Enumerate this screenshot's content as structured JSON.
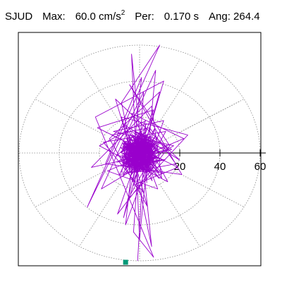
{
  "header": {
    "station": "SJUD",
    "max_label": "Max:",
    "max_value": "60.0 cm/s",
    "max_exponent": "2",
    "per_label": "Per:",
    "per_value": "0.170 s",
    "ang_label": "Ang:",
    "ang_value": "264.4"
  },
  "chart_data": {
    "type": "line",
    "projection": "polar-hodogram",
    "radial_axis": {
      "ticks": [
        20,
        40,
        60
      ],
      "tick_labels": [
        "20",
        "40",
        "60"
      ],
      "range": [
        0,
        60
      ],
      "units": "cm/s2"
    },
    "grid": true,
    "grid_circles": [
      20,
      40,
      60
    ],
    "spokes_deg": [
      0,
      30,
      60,
      90,
      120,
      150,
      180,
      210,
      240,
      270,
      300,
      330
    ],
    "max_value": 60.0,
    "direction_angle_deg": 264.4,
    "direction_line_angle_deg": 30,
    "trace_color": "#9900cc",
    "marker_color": "#009977",
    "series": [
      {
        "x": [
          0,
          8,
          -6,
          12,
          -14,
          5,
          18,
          -10,
          3,
          -20,
          14,
          -4,
          22,
          -16,
          9,
          -2,
          16,
          -24,
          6,
          11,
          -8,
          20,
          -12,
          2,
          -18,
          13,
          -6,
          24,
          -9,
          4,
          -15,
          10,
          -3,
          19,
          -21,
          7,
          -11,
          15,
          -5,
          21,
          -17,
          1,
          -7,
          12,
          -13,
          17,
          -19,
          8,
          0,
          -4,
          6,
          -9,
          10,
          -26,
          2,
          -3,
          7,
          -22,
          12,
          -8,
          3,
          -1
        ],
        "y": [
          0,
          6,
          -8,
          -4,
          10,
          14,
          -6,
          -12,
          18,
          4,
          -16,
          22,
          8,
          -10,
          -20,
          12,
          2,
          -8,
          26,
          -14,
          16,
          -4,
          30,
          -22,
          6,
          12,
          -26,
          10,
          20,
          -30,
          8,
          34,
          -18,
          -8,
          14,
          24,
          -34,
          4,
          38,
          -12,
          -6,
          42,
          -40,
          18,
          12,
          4,
          -20,
          46,
          -48,
          55,
          -52,
          28,
          60,
          -30,
          34,
          -44,
          -58,
          20,
          40,
          -36,
          16,
          -60
        ]
      }
    ]
  }
}
